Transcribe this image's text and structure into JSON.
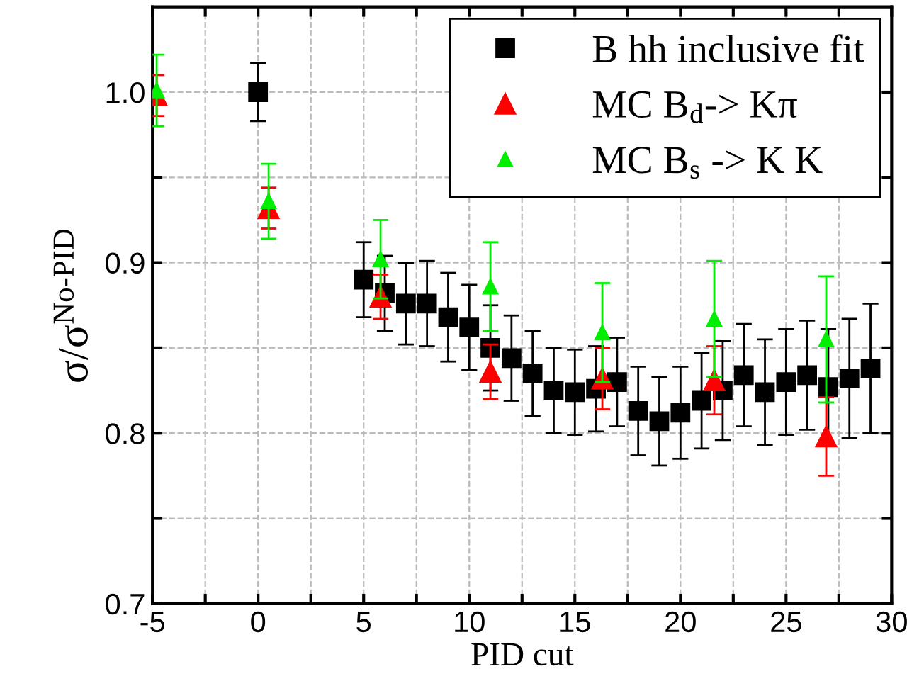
{
  "chart_data": {
    "type": "scatter",
    "xlabel": "PID cut",
    "ylabel": "σ/σ$^{No-PID}$",
    "xlim": [
      -5,
      30
    ],
    "ylim": [
      0.7,
      1.05
    ],
    "xticks": [
      -5,
      {
        "value": -2.5,
        "label": null
      },
      0,
      {
        "value": 2.5,
        "label": null
      },
      5,
      {
        "value": 7.5,
        "label": null
      },
      10,
      {
        "value": 12.5,
        "label": null
      },
      15,
      {
        "value": 17.5,
        "label": null
      },
      20,
      {
        "value": 22.5,
        "label": null
      },
      25,
      {
        "value": 27.5,
        "label": null
      },
      30
    ],
    "yticks": [
      {
        "value": 0.7,
        "label": "0.7"
      },
      {
        "value": 0.75,
        "label": null
      },
      {
        "value": 0.8,
        "label": "0.8"
      },
      {
        "value": 0.85,
        "label": null
      },
      {
        "value": 0.9,
        "label": "0.9"
      },
      {
        "value": 0.95,
        "label": null
      },
      {
        "value": 1.0,
        "label": "1.0"
      }
    ],
    "grid": true,
    "legend": "top right",
    "series": [
      {
        "name": "B hh inclusive fit",
        "color": "#000000",
        "marker": "square",
        "x": [
          0,
          5,
          6,
          7,
          8,
          9,
          10,
          11,
          12,
          13,
          14,
          15,
          16,
          17,
          18,
          19,
          20,
          21,
          22,
          23,
          24,
          25,
          26,
          27,
          28,
          29
        ],
        "values": [
          1.0,
          0.89,
          0.882,
          0.876,
          0.876,
          0.868,
          0.862,
          0.85,
          0.844,
          0.835,
          0.825,
          0.824,
          0.826,
          0.83,
          0.813,
          0.807,
          0.812,
          0.819,
          0.825,
          0.834,
          0.824,
          0.83,
          0.834,
          0.827,
          0.832,
          0.838
        ],
        "errors": [
          0.017,
          0.022,
          0.022,
          0.024,
          0.025,
          0.026,
          0.025,
          0.025,
          0.025,
          0.025,
          0.025,
          0.025,
          0.025,
          0.026,
          0.026,
          0.026,
          0.027,
          0.028,
          0.029,
          0.03,
          0.031,
          0.031,
          0.032,
          0.034,
          0.035,
          0.038
        ]
      },
      {
        "name": "MC B$_{d}$-> Kπ",
        "color": "#ff0000",
        "marker": "triangle",
        "x": [
          -4.8,
          0.5,
          5.8,
          11,
          16.3,
          21.6,
          26.9
        ],
        "values": [
          0.998,
          0.932,
          0.88,
          0.836,
          0.832,
          0.831,
          0.798
        ],
        "errors": [
          0.012,
          0.012,
          0.013,
          0.016,
          0.018,
          0.02,
          0.023
        ]
      },
      {
        "name": "MC B$_{s}$ -> K K",
        "color": "#00ee00",
        "marker": "triangle",
        "x": [
          -4.8,
          0.5,
          5.8,
          11,
          16.3,
          21.6,
          26.9
        ],
        "values": [
          1.001,
          0.936,
          0.902,
          0.886,
          0.859,
          0.867,
          0.855
        ],
        "errors": [
          0.021,
          0.022,
          0.023,
          0.026,
          0.029,
          0.034,
          0.037
        ]
      }
    ]
  }
}
